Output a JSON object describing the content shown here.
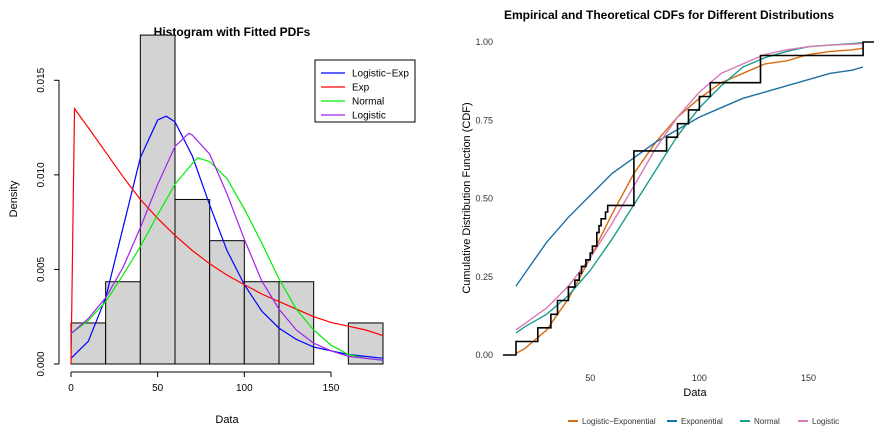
{
  "chart_data": [
    {
      "type": "bar",
      "title": "Histogram with Fitted PDFs",
      "xlabel": "Data",
      "ylabel": "Density",
      "xlim": [
        0,
        180
      ],
      "ylim": [
        0,
        0.0175
      ],
      "xticks": [
        0,
        50,
        100,
        150
      ],
      "yticks": [
        0.0,
        0.005,
        0.01,
        0.015
      ],
      "ytick_labels": [
        "0.000",
        "0.005",
        "0.010",
        "0.015"
      ],
      "bins": [
        {
          "start": 0,
          "end": 20,
          "density": 0.00217
        },
        {
          "start": 20,
          "end": 40,
          "density": 0.00435
        },
        {
          "start": 40,
          "end": 60,
          "density": 0.01739
        },
        {
          "start": 60,
          "end": 80,
          "density": 0.0087
        },
        {
          "start": 80,
          "end": 100,
          "density": 0.00652
        },
        {
          "start": 100,
          "end": 120,
          "density": 0.00435
        },
        {
          "start": 120,
          "end": 140,
          "density": 0.00435
        },
        {
          "start": 140,
          "end": 160,
          "density": 0
        },
        {
          "start": 160,
          "end": 180,
          "density": 0.00217
        }
      ],
      "bar_color": "#d3d3d3",
      "legend_position": "top-right",
      "series": [
        {
          "name": "Logistic−Exp",
          "color": "#0000ff",
          "x": [
            0,
            10,
            20,
            30,
            40,
            50,
            55,
            60,
            70,
            80,
            90,
            100,
            110,
            120,
            130,
            140,
            150,
            160,
            170,
            180
          ],
          "y": [
            0.0003,
            0.0012,
            0.0035,
            0.0072,
            0.0109,
            0.0129,
            0.0131,
            0.0128,
            0.011,
            0.0084,
            0.006,
            0.0042,
            0.0028,
            0.0019,
            0.0013,
            0.0009,
            0.0007,
            0.0005,
            0.0004,
            0.0003
          ]
        },
        {
          "name": "Exp",
          "color": "#ff0000",
          "x": [
            0,
            2,
            10,
            20,
            30,
            40,
            50,
            60,
            70,
            80,
            90,
            100,
            110,
            120,
            130,
            140,
            150,
            160,
            170,
            180
          ],
          "y": [
            0.0,
            0.0135,
            0.0125,
            0.0112,
            0.0099,
            0.0087,
            0.0077,
            0.0068,
            0.006,
            0.0053,
            0.0047,
            0.0042,
            0.0037,
            0.0033,
            0.0029,
            0.0025,
            0.0022,
            0.002,
            0.0018,
            0.0015
          ]
        },
        {
          "name": "Normal",
          "color": "#00ee00",
          "x": [
            0,
            10,
            20,
            30,
            40,
            50,
            60,
            70,
            73,
            80,
            90,
            100,
            110,
            120,
            130,
            140,
            150,
            160,
            170,
            180
          ],
          "y": [
            0.0016,
            0.0023,
            0.0033,
            0.0047,
            0.0062,
            0.0079,
            0.0095,
            0.0106,
            0.0109,
            0.0107,
            0.0098,
            0.0082,
            0.0064,
            0.0045,
            0.0029,
            0.0018,
            0.001,
            0.0005,
            0.0003,
            0.0002
          ]
        },
        {
          "name": "Logistic",
          "color": "#a020f0",
          "x": [
            0,
            10,
            20,
            30,
            40,
            50,
            60,
            68,
            70,
            80,
            90,
            100,
            110,
            120,
            130,
            140,
            150,
            160,
            170,
            180
          ],
          "y": [
            0.0016,
            0.0024,
            0.0035,
            0.0051,
            0.0072,
            0.0095,
            0.0115,
            0.0122,
            0.0121,
            0.0111,
            0.009,
            0.0066,
            0.0044,
            0.0029,
            0.0018,
            0.0011,
            0.0007,
            0.0004,
            0.0003,
            0.0002
          ]
        }
      ]
    },
    {
      "type": "line",
      "title": "Empirical and Theoretical CDFs for Different Distributions",
      "xlabel": "Data",
      "ylabel": "Cumulative Distribution Function (CDF)",
      "xlim": [
        16,
        180
      ],
      "ylim": [
        0,
        1
      ],
      "xticks": [
        50,
        100,
        150
      ],
      "yticks": [
        0,
        0.25,
        0.5,
        0.75,
        1
      ],
      "ytick_labels": [
        "0.00",
        "0.25",
        "0.50",
        "0.75",
        "1.00"
      ],
      "legend_position": "bottom",
      "empirical": {
        "color": "#000000",
        "x": [
          10,
          16,
          26,
          32,
          35,
          40,
          43,
          45,
          46,
          48,
          50,
          51,
          53,
          54,
          55,
          57,
          58,
          60,
          70,
          85,
          90,
          95,
          100,
          105,
          128,
          175,
          180
        ],
        "y": [
          0.0,
          0.043,
          0.087,
          0.13,
          0.174,
          0.217,
          0.239,
          0.261,
          0.283,
          0.304,
          0.326,
          0.348,
          0.391,
          0.413,
          0.435,
          0.457,
          0.478,
          0.478,
          0.652,
          0.696,
          0.739,
          0.783,
          0.826,
          0.87,
          0.957,
          1.0,
          1.0
        ]
      },
      "series": [
        {
          "name": "Logistic−Exponential",
          "color": "#d96b11",
          "x": [
            16,
            20,
            30,
            40,
            50,
            60,
            70,
            80,
            90,
            100,
            110,
            120,
            130,
            140,
            150,
            160,
            170,
            175
          ],
          "y": [
            0.005,
            0.02,
            0.08,
            0.18,
            0.31,
            0.45,
            0.58,
            0.68,
            0.76,
            0.82,
            0.87,
            0.9,
            0.93,
            0.94,
            0.96,
            0.97,
            0.975,
            0.98
          ]
        },
        {
          "name": "Exponential",
          "color": "#1f6fa3",
          "x": [
            16,
            20,
            30,
            40,
            50,
            60,
            70,
            80,
            90,
            100,
            110,
            120,
            130,
            140,
            150,
            160,
            170,
            175
          ],
          "y": [
            0.22,
            0.26,
            0.36,
            0.44,
            0.51,
            0.58,
            0.63,
            0.68,
            0.72,
            0.76,
            0.79,
            0.82,
            0.84,
            0.86,
            0.88,
            0.9,
            0.91,
            0.92
          ]
        },
        {
          "name": "Normal",
          "color": "#1a9e8a",
          "x": [
            16,
            20,
            30,
            40,
            50,
            60,
            70,
            80,
            90,
            100,
            110,
            120,
            130,
            140,
            150,
            160,
            170,
            175
          ],
          "y": [
            0.07,
            0.09,
            0.13,
            0.19,
            0.27,
            0.37,
            0.48,
            0.59,
            0.7,
            0.79,
            0.86,
            0.92,
            0.95,
            0.97,
            0.985,
            0.99,
            0.995,
            0.998
          ]
        },
        {
          "name": "Logistic",
          "color": "#d67bb8",
          "x": [
            16,
            20,
            30,
            40,
            50,
            60,
            70,
            80,
            90,
            100,
            110,
            120,
            130,
            140,
            150,
            160,
            170,
            175
          ],
          "y": [
            0.08,
            0.1,
            0.15,
            0.22,
            0.31,
            0.42,
            0.54,
            0.66,
            0.76,
            0.84,
            0.9,
            0.93,
            0.96,
            0.975,
            0.985,
            0.99,
            0.993,
            0.995
          ]
        }
      ]
    }
  ]
}
